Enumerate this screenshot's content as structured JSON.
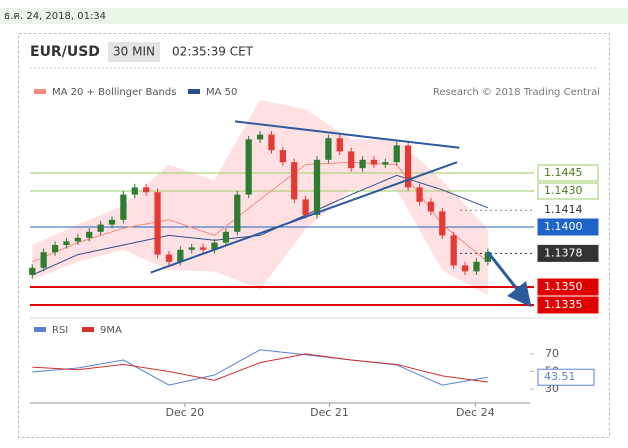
{
  "header": {
    "timestamp": "ธ.ค. 24, 2018, 01:34"
  },
  "chart_data": {
    "type": "candlestick",
    "symbol": "EUR/USD",
    "timeframe": "30 MIN",
    "clock": "02:35:39 CET",
    "legend": [
      "MA 20 + Bollinger Bands",
      "MA 50"
    ],
    "credit": "Research © 2018 Trading Central",
    "xlim": [
      -0.2,
      43.7
    ],
    "ylim": [
      1.1325,
      1.151
    ],
    "xticks": [
      {
        "value": 13.4,
        "label": "Dec 20"
      },
      {
        "value": 26.1,
        "label": "Dec 21"
      },
      {
        "value": 38.9,
        "label": "Dec 24"
      }
    ],
    "up_color": "#2e7d32",
    "down_color": "#e53935",
    "open": [
      1.136,
      1.1366,
      1.1379,
      1.1385,
      1.1388,
      1.1391,
      1.1396,
      1.1402,
      1.1406,
      1.1427,
      1.1433,
      1.1429,
      1.1377,
      1.1371,
      1.1381,
      1.1383,
      1.1381,
      1.1387,
      1.1396,
      1.1427,
      1.1473,
      1.1477,
      1.1464,
      1.1454,
      1.1423,
      1.141,
      1.1456,
      1.1474,
      1.1463,
      1.1449,
      1.1456,
      1.1452,
      1.1454,
      1.1468,
      1.1433,
      1.1421,
      1.1413,
      1.1393,
      1.1368,
      1.1363,
      1.1371
    ],
    "high": [
      1.1369,
      1.1382,
      1.1388,
      1.1391,
      1.1394,
      1.1399,
      1.1405,
      1.1409,
      1.143,
      1.1436,
      1.1436,
      1.1432,
      1.138,
      1.1384,
      1.1386,
      1.1386,
      1.139,
      1.1399,
      1.143,
      1.1476,
      1.148,
      1.148,
      1.1467,
      1.1457,
      1.1426,
      1.1459,
      1.1477,
      1.1477,
      1.1466,
      1.1459,
      1.1459,
      1.1457,
      1.1471,
      1.1471,
      1.1436,
      1.1424,
      1.1416,
      1.1396,
      1.1371,
      1.1374,
      1.1382
    ],
    "low": [
      1.1357,
      1.1363,
      1.1376,
      1.1382,
      1.1385,
      1.1388,
      1.1393,
      1.1399,
      1.1403,
      1.1424,
      1.1426,
      1.1374,
      1.1368,
      1.1368,
      1.1378,
      1.1378,
      1.1378,
      1.1384,
      1.1393,
      1.1424,
      1.147,
      1.1461,
      1.1451,
      1.142,
      1.1407,
      1.1407,
      1.1453,
      1.146,
      1.1446,
      1.1446,
      1.1449,
      1.1449,
      1.1451,
      1.143,
      1.1418,
      1.141,
      1.139,
      1.1365,
      1.136,
      1.136,
      1.1368
    ],
    "close": [
      1.1366,
      1.1379,
      1.1385,
      1.1388,
      1.1391,
      1.1396,
      1.1402,
      1.1406,
      1.1427,
      1.1433,
      1.1429,
      1.1377,
      1.1371,
      1.1381,
      1.1383,
      1.1381,
      1.1387,
      1.1396,
      1.1427,
      1.1473,
      1.1477,
      1.1464,
      1.1454,
      1.1423,
      1.141,
      1.1456,
      1.1474,
      1.1463,
      1.1449,
      1.1456,
      1.1452,
      1.1454,
      1.1468,
      1.1433,
      1.1421,
      1.1413,
      1.1393,
      1.1368,
      1.1363,
      1.1371,
      1.1379
    ],
    "ind_x": [
      0,
      4,
      8,
      12,
      16,
      20,
      24,
      28,
      32,
      36,
      40
    ],
    "band_color": "#ffcdd2",
    "bollinger_upper": [
      1.1385,
      1.1402,
      1.1418,
      1.1452,
      1.1439,
      1.1506,
      1.1498,
      1.1473,
      1.1473,
      1.1439,
      1.1398
    ],
    "bollinger_lower": [
      1.1356,
      1.1371,
      1.1381,
      1.1364,
      1.1363,
      1.1348,
      1.1398,
      1.1431,
      1.1431,
      1.1364,
      1.1343
    ],
    "series": [
      {
        "name": "MA 20",
        "color": "#f28b82",
        "values": [
          1.1371,
          1.1387,
          1.1399,
          1.1406,
          1.1393,
          1.1423,
          1.1452,
          1.1454,
          1.1452,
          1.1402,
          1.1371
        ]
      },
      {
        "name": "MA 50",
        "color": "#2c4f8c",
        "values": [
          1.136,
          1.1377,
          1.1385,
          1.1393,
          1.1389,
          1.1393,
          1.141,
          1.1427,
          1.1443,
          1.1431,
          1.1416
        ]
      }
    ],
    "trendline_color": "#2c5a9c",
    "trendlines": [
      {
        "x": [
          17.8,
          37.5
        ],
        "y": [
          1.1488,
          1.1466
        ]
      },
      {
        "x": [
          10.4,
          37.3
        ],
        "y": [
          1.1362,
          1.1454
        ]
      }
    ],
    "arrow": {
      "x": [
        40,
        43.5
      ],
      "y": [
        1.1379,
        1.1337
      ]
    },
    "levels": [
      {
        "price": 1.1445,
        "color": "#9ccc65",
        "line": "solid",
        "box": "outline"
      },
      {
        "price": {
          "value": 1.143,
          "label": "1.1430"
        },
        "color": "#9ccc65",
        "line": "solid",
        "box": "outline"
      },
      {
        "price": 1.1414,
        "color": "#888888",
        "line": "dotted",
        "box": "none"
      },
      {
        "price": {
          "value": 1.14,
          "label": "1.1400"
        },
        "color": "#1e64c8",
        "line": "solid",
        "box": "filled"
      },
      {
        "price": 1.1378,
        "color": "#333333",
        "line": "dotted",
        "box": "filled"
      },
      {
        "price": {
          "value": 1.135,
          "label": "1.1350"
        },
        "color": "#e00000",
        "line": "solid",
        "box": "filled"
      },
      {
        "price": 1.1335,
        "color": "#e00000",
        "line": "solid",
        "box": "filled"
      }
    ],
    "rsi": {
      "legend": [
        "RSI",
        "9MA"
      ],
      "ylim": [
        20,
        80
      ],
      "yticks": [
        70,
        50,
        30
      ],
      "series": [
        {
          "name": "RSI",
          "color": "#5b7fd6",
          "values": [
            49.4,
            54,
            63,
            34.6,
            46,
            74.6,
            68.9,
            63,
            57.4,
            34.6,
            43.51
          ]
        },
        {
          "name": "9MA",
          "color": "#d32f2f",
          "values": [
            55,
            52,
            58,
            50,
            40,
            60,
            70,
            63,
            58,
            45,
            38
          ]
        }
      ]
    }
  }
}
